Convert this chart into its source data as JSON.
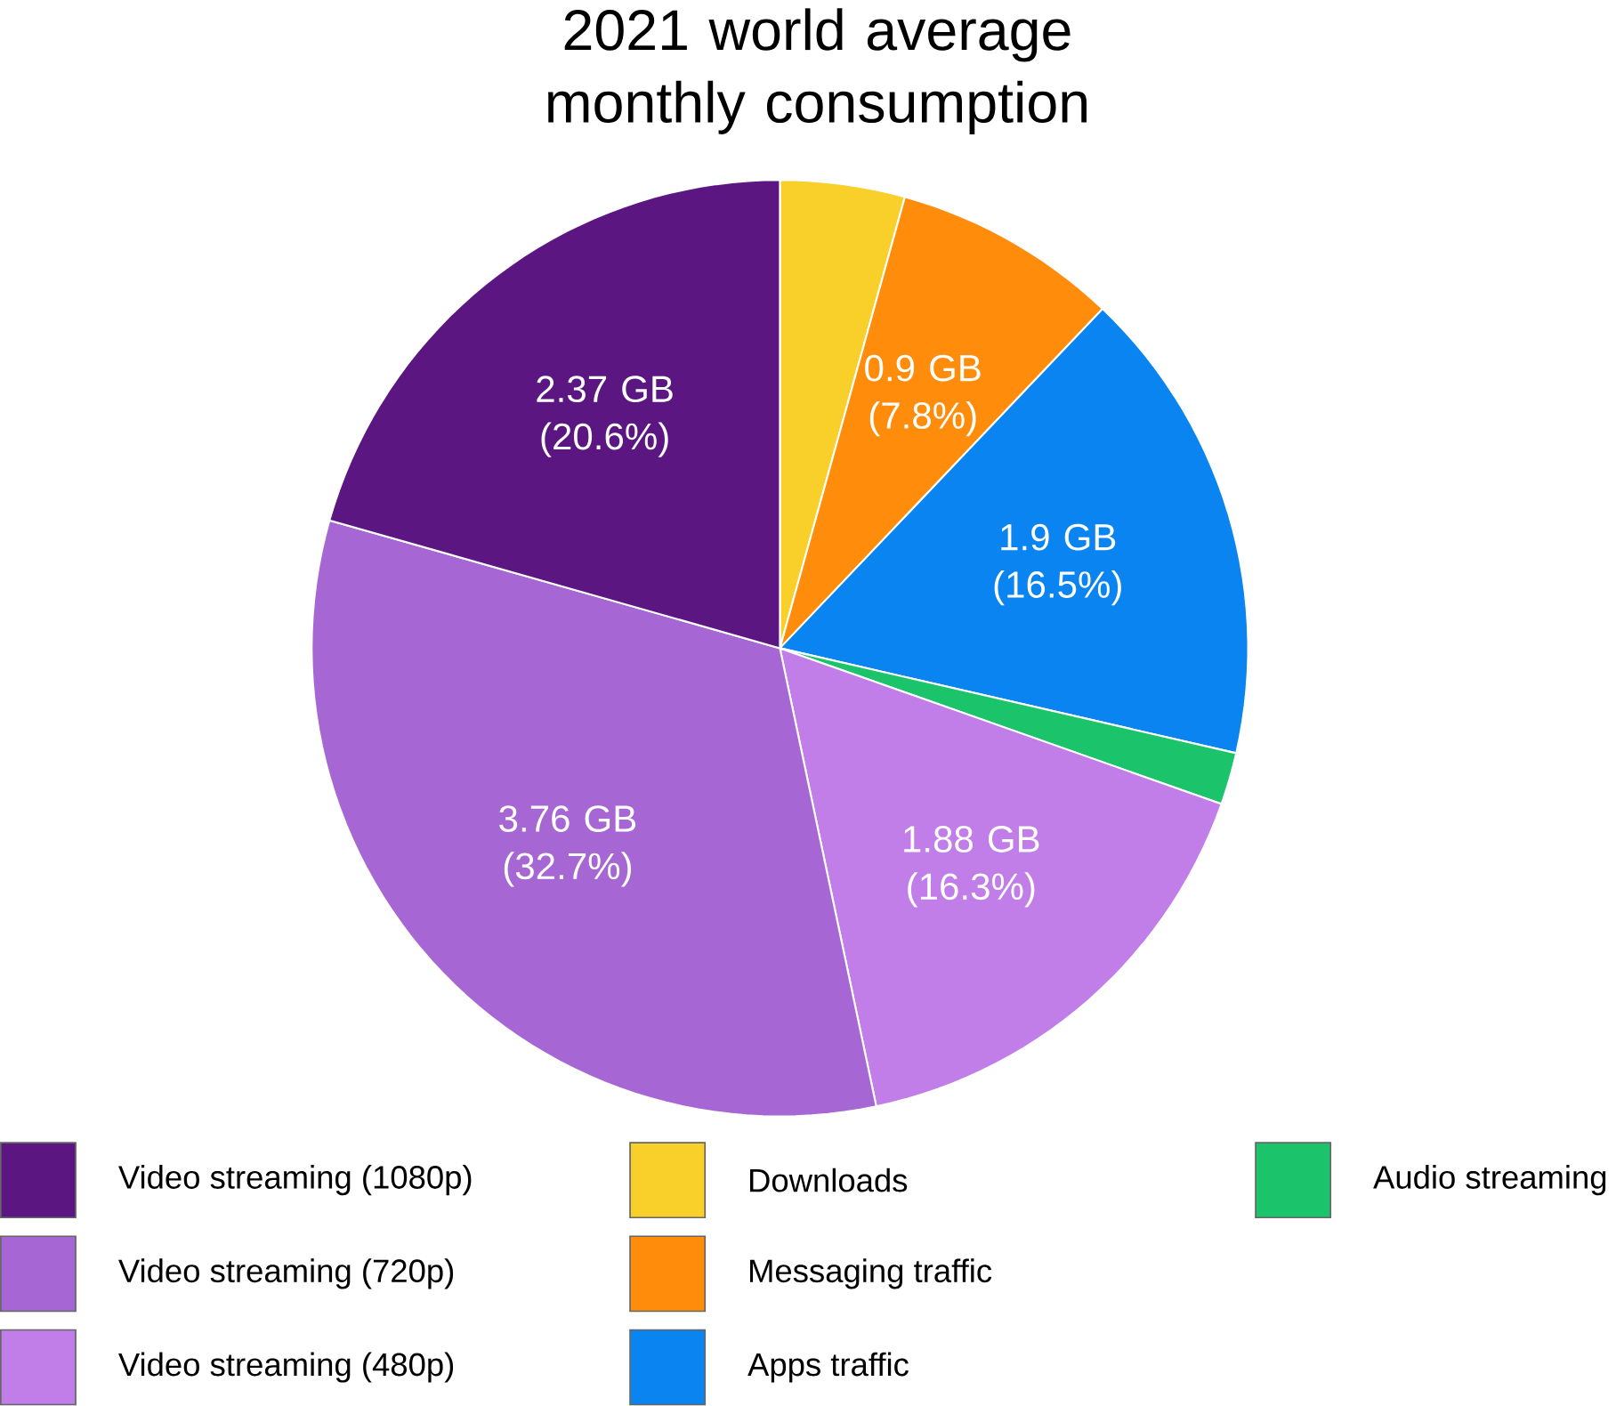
{
  "chart_data": {
    "type": "pie",
    "title": "2021 world average monthly consumption",
    "categories": [
      "Downloads",
      "Messaging traffic",
      "Apps traffic",
      "Audio streaming",
      "Video streaming (480p)",
      "Video streaming (720p)",
      "Video streaming (1080p)"
    ],
    "values": [
      4.3,
      7.8,
      16.5,
      1.8,
      16.3,
      32.7,
      20.6
    ],
    "colors": [
      "#f9d02a",
      "#ff8c0a",
      "#0a84f0",
      "#1bc46a",
      "#c17de8",
      "#a666d4",
      "#5b1682"
    ],
    "value_labels": [
      null,
      "0.9 GB (7.8%)",
      "1.9 GB (16.5%)",
      null,
      "1.88 GB (16.3%)",
      "3.76 GB (32.7%)",
      "2.37 GB (20.6%)"
    ],
    "legend": "bottom"
  }
}
